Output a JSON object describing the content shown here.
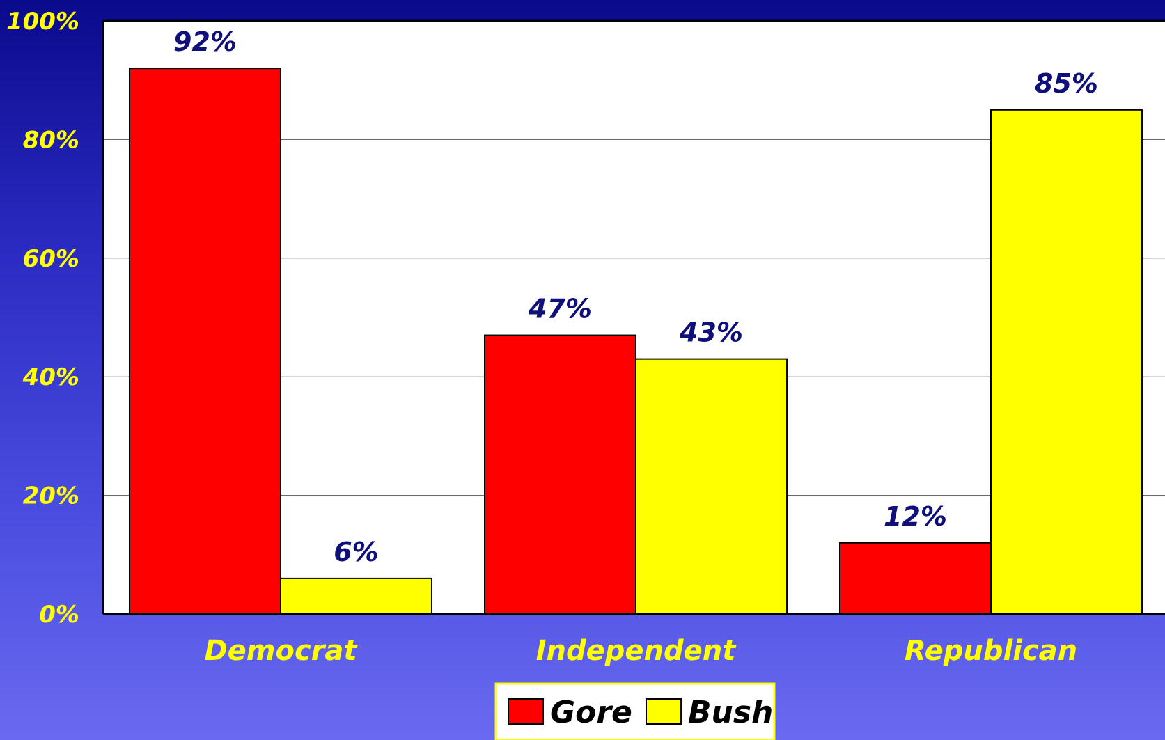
{
  "chart_data": {
    "type": "bar",
    "categories": [
      "Democrat",
      "Independent",
      "Republican"
    ],
    "series": [
      {
        "name": "Gore",
        "color": "#ff0000",
        "values": [
          92,
          47,
          12
        ],
        "labels": [
          "92%",
          "47%",
          "12%"
        ]
      },
      {
        "name": "Bush",
        "color": "#ffff00",
        "values": [
          6,
          43,
          85
        ],
        "labels": [
          "6%",
          "43%",
          "85%"
        ]
      }
    ],
    "ylim": [
      0,
      100
    ],
    "yticks": [
      0,
      20,
      40,
      60,
      80,
      100
    ],
    "ytick_labels": [
      "0%",
      "20%",
      "40%",
      "60%",
      "80%",
      "100%"
    ],
    "grid": true,
    "legend": "bottom-center",
    "plot_background": "#ffffff",
    "tick_label_color": "#ffff00",
    "data_label_color": "#10107a"
  }
}
